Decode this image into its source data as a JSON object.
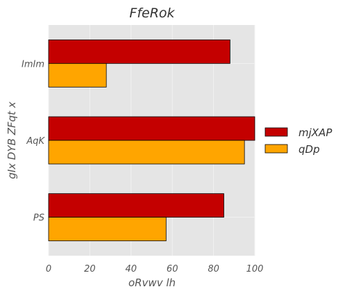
{
  "chart_data": {
    "type": "bar",
    "orientation": "horizontal",
    "title": "FfeRok",
    "xlabel": "oRvwv lh",
    "ylabel": "gIx DYB ZFqt x",
    "categories": [
      "ImIm",
      "AqK",
      "PS"
    ],
    "series": [
      {
        "name": "mjXAP",
        "color": "#c40000",
        "values": [
          88,
          100,
          85
        ]
      },
      {
        "name": "qDp",
        "color": "#ffa500",
        "values": [
          28,
          95,
          57
        ]
      }
    ],
    "xlim": [
      0,
      100
    ],
    "xticks": [
      0,
      20,
      40,
      60,
      80,
      100
    ],
    "grid": true,
    "legend_position": "right"
  }
}
